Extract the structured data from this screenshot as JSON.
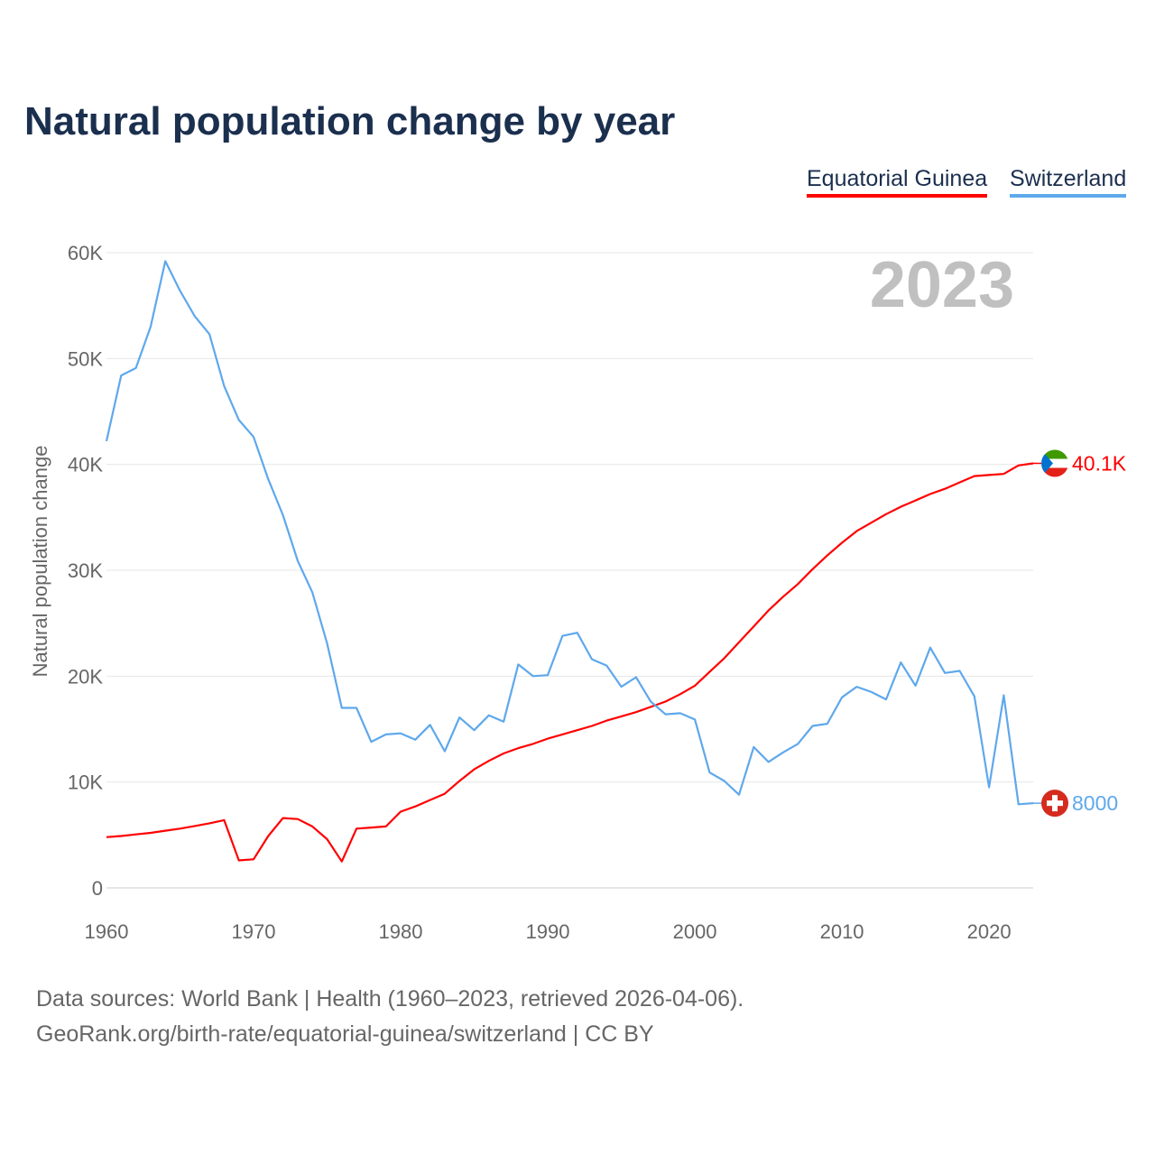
{
  "chart_data": {
    "type": "line",
    "title": "Natural population change by year",
    "ylabel": "Natural population change",
    "xlabel": "",
    "xlim": [
      1960,
      2023
    ],
    "ylim": [
      0,
      60000
    ],
    "x_ticks": [
      "1960",
      "1970",
      "1980",
      "1990",
      "2000",
      "2010",
      "2020"
    ],
    "y_ticks": [
      "0",
      "10K",
      "20K",
      "30K",
      "40K",
      "50K",
      "60K"
    ],
    "grid": true,
    "year_watermark": "2023",
    "legend_position": "top-right",
    "x": [
      1960,
      1961,
      1962,
      1963,
      1964,
      1965,
      1966,
      1967,
      1968,
      1969,
      1970,
      1971,
      1972,
      1973,
      1974,
      1975,
      1976,
      1977,
      1978,
      1979,
      1980,
      1981,
      1982,
      1983,
      1984,
      1985,
      1986,
      1987,
      1988,
      1989,
      1990,
      1991,
      1992,
      1993,
      1994,
      1995,
      1996,
      1997,
      1998,
      1999,
      2000,
      2001,
      2002,
      2003,
      2004,
      2005,
      2006,
      2007,
      2008,
      2009,
      2010,
      2011,
      2012,
      2013,
      2014,
      2015,
      2016,
      2017,
      2018,
      2019,
      2020,
      2021,
      2022,
      2023
    ],
    "series": [
      {
        "name": "Equatorial Guinea",
        "color": "#ff0000",
        "end_label": "40.1K",
        "values": [
          4800,
          4900,
          5050,
          5200,
          5400,
          5600,
          5850,
          6100,
          6400,
          2600,
          2700,
          4900,
          6600,
          6500,
          5800,
          4600,
          2500,
          5600,
          5700,
          5800,
          7200,
          7700,
          8300,
          8900,
          10100,
          11200,
          12000,
          12700,
          13200,
          13600,
          14100,
          14500,
          14900,
          15300,
          15800,
          16200,
          16600,
          17100,
          17600,
          18300,
          19100,
          20400,
          21700,
          23200,
          24700,
          26200,
          27500,
          28700,
          30100,
          31400,
          32600,
          33700,
          34500,
          35300,
          36000,
          36600,
          37200,
          37700,
          38300,
          38900,
          39000,
          39100,
          39900,
          40100
        ]
      },
      {
        "name": "Switzerland",
        "color": "#5ea8ec",
        "end_label": "8000",
        "values": [
          42200,
          48400,
          49100,
          53000,
          59200,
          56400,
          54000,
          52300,
          47400,
          44200,
          42600,
          38600,
          35200,
          30900,
          27900,
          23100,
          17000,
          17000,
          13800,
          14500,
          14600,
          14000,
          15400,
          12900,
          16100,
          14900,
          16300,
          15700,
          21100,
          20000,
          20100,
          23800,
          24100,
          21600,
          21000,
          19000,
          19900,
          17600,
          16400,
          16500,
          15900,
          10900,
          10100,
          8800,
          13300,
          11900,
          12800,
          13600,
          15300,
          15500,
          18000,
          19000,
          18500,
          17800,
          21300,
          19100,
          22700,
          20300,
          20500,
          18100,
          9500,
          18200,
          7900,
          8000
        ]
      }
    ]
  },
  "footer": {
    "line1": "Data sources: World Bank | Health (1960–2023, retrieved 2026-04-06).",
    "line2": "GeoRank.org/birth-rate/equatorial-guinea/switzerland | CC BY"
  }
}
